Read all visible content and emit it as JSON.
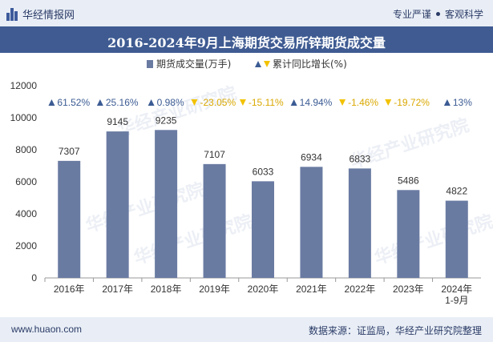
{
  "header": {
    "brand": "华经情报网",
    "tag1": "专业严谨",
    "tag2": "客观科学"
  },
  "footer": {
    "site": "www.huaon.com",
    "source": "数据来源：证监局，华经产业研究院整理"
  },
  "watermark": "华经产业研究院",
  "colors": {
    "bar": "#6a7ba2",
    "up": "#3b5b93",
    "down": "#f2c200"
  },
  "chart_data": {
    "type": "bar",
    "title": "2016-2024年9月上海期货交易所锌期货成交量",
    "categories": [
      "2016年",
      "2017年",
      "2018年",
      "2019年",
      "2020年",
      "2021年",
      "2022年",
      "2023年",
      "2024年\n1-9月"
    ],
    "series": [
      {
        "name": "期货成交量(万手)",
        "values": [
          7307,
          9145,
          9235,
          7107,
          6033,
          6934,
          6833,
          5486,
          4822
        ]
      },
      {
        "name": "累计同比增长(%)",
        "values": [
          61.52,
          25.16,
          0.98,
          -23.05,
          -15.11,
          14.94,
          -1.46,
          -19.72,
          13
        ]
      }
    ],
    "growth_labels": [
      "61.52%",
      "25.16%",
      "0.98%",
      "-23.05%",
      "-15.11%",
      "14.94%",
      "-1.46%",
      "-19.72%",
      "13%"
    ],
    "yticks": [
      0,
      2000,
      4000,
      6000,
      8000,
      10000,
      12000
    ],
    "ylim": [
      0,
      12000
    ],
    "legend_position": "top-center",
    "grid": false
  }
}
